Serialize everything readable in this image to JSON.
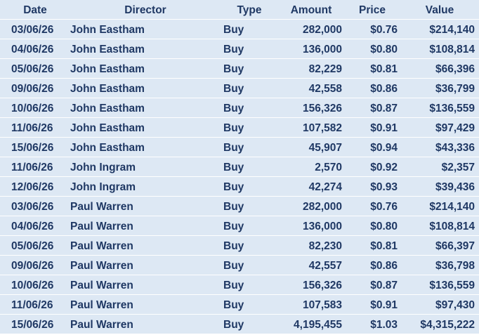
{
  "table": {
    "header": [
      "Date",
      "Director",
      "Type",
      "Amount",
      "Price",
      "Value"
    ],
    "rows": [
      [
        "03/06/26",
        "John Eastham",
        "Buy",
        "282,000",
        "$0.76",
        "$214,140"
      ],
      [
        "04/06/26",
        "John Eastham",
        "Buy",
        "136,000",
        "$0.80",
        "$108,814"
      ],
      [
        "05/06/26",
        "John Eastham",
        "Buy",
        "82,229",
        "$0.81",
        "$66,396"
      ],
      [
        "09/06/26",
        "John Eastham",
        "Buy",
        "42,558",
        "$0.86",
        "$36,799"
      ],
      [
        "10/06/26",
        "John Eastham",
        "Buy",
        "156,326",
        "$0.87",
        "$136,559"
      ],
      [
        "11/06/26",
        "John Eastham",
        "Buy",
        "107,582",
        "$0.91",
        "$97,429"
      ],
      [
        "15/06/26",
        "John Eastham",
        "Buy",
        "45,907",
        "$0.94",
        "$43,336"
      ],
      [
        "11/06/26",
        "John Ingram",
        "Buy",
        "2,570",
        "$0.92",
        "$2,357"
      ],
      [
        "12/06/26",
        "John Ingram",
        "Buy",
        "42,274",
        "$0.93",
        "$39,436"
      ],
      [
        "03/06/26",
        "Paul Warren",
        "Buy",
        "282,000",
        "$0.76",
        "$214,140"
      ],
      [
        "04/06/26",
        "Paul Warren",
        "Buy",
        "136,000",
        "$0.80",
        "$108,814"
      ],
      [
        "05/06/26",
        "Paul Warren",
        "Buy",
        "82,230",
        "$0.81",
        "$66,397"
      ],
      [
        "09/06/26",
        "Paul Warren",
        "Buy",
        "42,557",
        "$0.86",
        "$36,798"
      ],
      [
        "10/06/26",
        "Paul Warren",
        "Buy",
        "156,326",
        "$0.87",
        "$136,559"
      ],
      [
        "11/06/26",
        "Paul Warren",
        "Buy",
        "107,583",
        "$0.91",
        "$97,430"
      ],
      [
        "15/06/26",
        "Paul Warren",
        "Buy",
        "4,195,455",
        "$1.03",
        "$4,315,222"
      ]
    ]
  }
}
